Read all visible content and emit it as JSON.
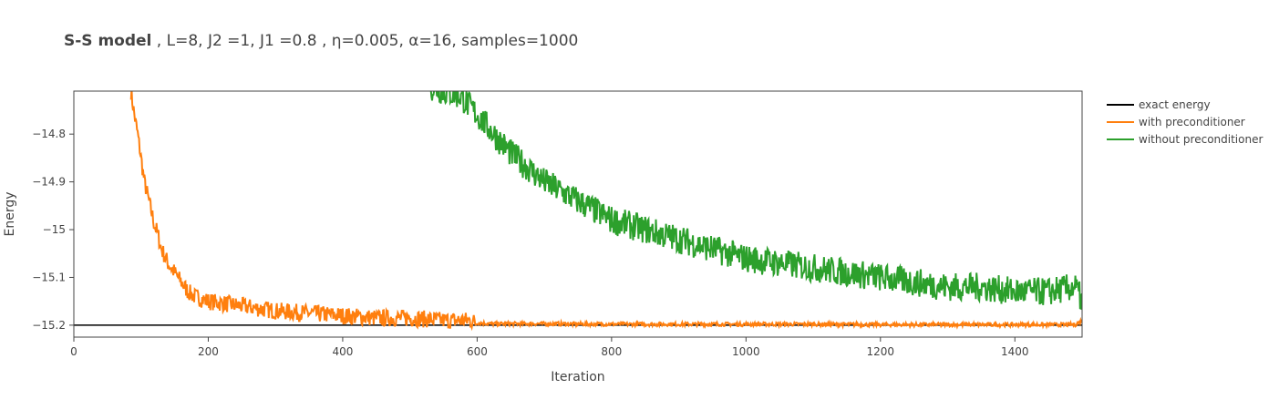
{
  "title": {
    "bold": "S-S model",
    "rest": " , L=8, J2 =1, J1 =0.8 , η=0.005, α=16, samples=1000"
  },
  "chart_data": {
    "type": "line",
    "xlabel": "Iteration",
    "ylabel": "Energy",
    "xlim": [
      0,
      1500
    ],
    "ylim": [
      -15.225,
      -14.71
    ],
    "x_ticks": [
      0,
      200,
      400,
      600,
      800,
      1000,
      1200,
      1400
    ],
    "x_tick_labels": [
      "0",
      "200",
      "400",
      "600",
      "800",
      "1000",
      "1200",
      "1400"
    ],
    "y_ticks": [
      -14.8,
      -14.9,
      -15,
      -15.1,
      -15.2
    ],
    "y_tick_labels": [
      "−14.8",
      "−14.9",
      "−15",
      "−15.1",
      "−15.2"
    ],
    "grid": false,
    "legend_position": "right",
    "series": [
      {
        "name": "exact energy",
        "color": "#000000",
        "x": [
          0,
          1500
        ],
        "y": [
          -15.2,
          -15.2
        ]
      },
      {
        "name": "with preconditioner",
        "color": "#ff7f0e",
        "x": [
          85,
          90,
          95,
          100,
          105,
          110,
          115,
          120,
          125,
          130,
          140,
          150,
          160,
          170,
          180,
          200,
          250,
          300,
          350,
          400,
          450,
          500,
          550,
          590,
          600,
          620,
          700,
          800,
          900,
          1000,
          1100,
          1200,
          1300,
          1400,
          1490,
          1500
        ],
        "y": [
          -14.71,
          -14.76,
          -14.8,
          -14.85,
          -14.9,
          -14.93,
          -14.96,
          -14.99,
          -15.01,
          -15.04,
          -15.07,
          -15.09,
          -15.11,
          -15.13,
          -15.14,
          -15.15,
          -15.16,
          -15.17,
          -15.175,
          -15.18,
          -15.185,
          -15.185,
          -15.19,
          -15.19,
          -15.195,
          -15.197,
          -15.197,
          -15.198,
          -15.198,
          -15.198,
          -15.198,
          -15.199,
          -15.199,
          -15.199,
          -15.199,
          -15.19
        ]
      },
      {
        "name": "without preconditioner",
        "color": "#2ca02c",
        "x": [
          530,
          550,
          575,
          600,
          625,
          650,
          675,
          700,
          750,
          800,
          850,
          900,
          950,
          1000,
          1050,
          1100,
          1150,
          1200,
          1250,
          1300,
          1350,
          1400,
          1450,
          1490,
          1500
        ],
        "y": [
          -14.7,
          -14.71,
          -14.72,
          -14.76,
          -14.8,
          -14.84,
          -14.87,
          -14.9,
          -14.94,
          -14.98,
          -15.0,
          -15.02,
          -15.04,
          -15.06,
          -15.07,
          -15.08,
          -15.09,
          -15.1,
          -15.11,
          -15.12,
          -15.12,
          -15.13,
          -15.13,
          -15.12,
          -15.15
        ]
      }
    ]
  }
}
